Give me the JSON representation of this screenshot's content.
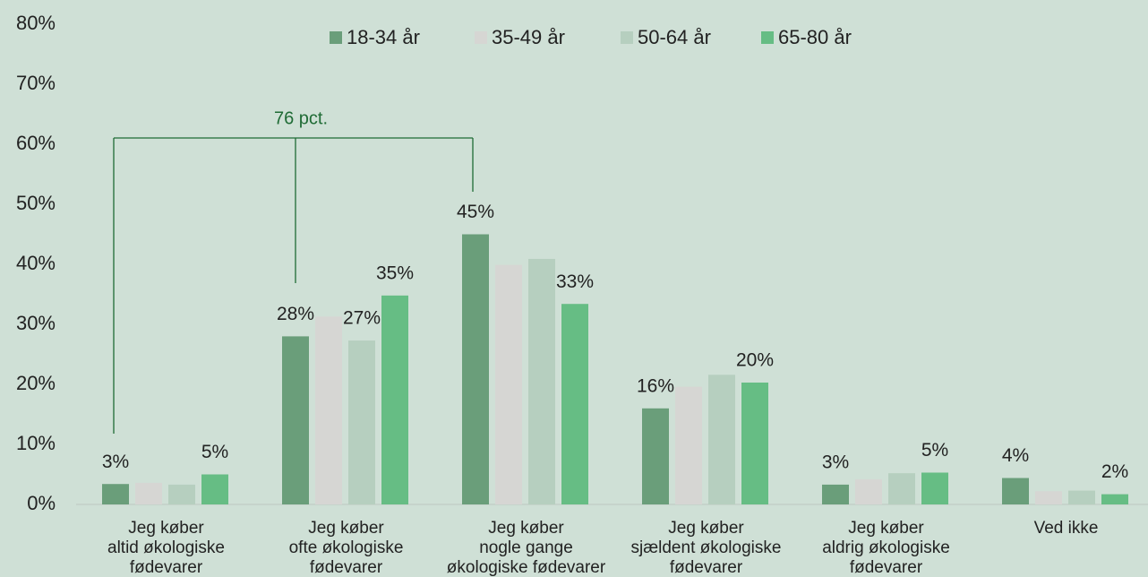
{
  "chart_data": {
    "type": "bar",
    "categories": [
      "Jeg køber\naltid økologiske\nfødevarer",
      "Jeg køber\nofte økologiske\nfødevarer",
      "Jeg køber\nnogle gange\nøkologiske fødevarer",
      "Jeg køber\nsjældent økologiske\nfødevarer",
      "Jeg køber\naldrig økologiske\nfødevarer",
      "Ved ikke"
    ],
    "series": [
      {
        "name": "18-34 år",
        "color": "#6a9e7a",
        "values": [
          3.4,
          28,
          45,
          16,
          3.3,
          4.4
        ],
        "value_labels": [
          "3%",
          "28%",
          "45%",
          "16%",
          "3%",
          "4%"
        ]
      },
      {
        "name": "35-49 år",
        "color": "#d6d6d3",
        "values": [
          3.6,
          31.3,
          39.9,
          19.6,
          4.2,
          2.2
        ],
        "value_labels": [
          null,
          null,
          null,
          null,
          null,
          null
        ]
      },
      {
        "name": "50-64 år",
        "color": "#b6cfbf",
        "values": [
          3.3,
          27.3,
          40.9,
          21.6,
          5.2,
          2.3
        ],
        "value_labels": [
          null,
          "27%",
          null,
          null,
          null,
          null
        ]
      },
      {
        "name": "65-80 år",
        "color": "#66bd84",
        "values": [
          5,
          34.8,
          33.4,
          20.3,
          5.3,
          1.7
        ],
        "value_labels": [
          "5%",
          "35%",
          "33%",
          "20%",
          "5%",
          "2%"
        ]
      }
    ],
    "annotation": "76 pct.",
    "ylim": [
      0,
      80
    ],
    "yticks": [
      {
        "value": 0,
        "label": "0%"
      },
      {
        "value": 10,
        "label": "10%"
      },
      {
        "value": 20,
        "label": "20%"
      },
      {
        "value": 30,
        "label": "30%"
      },
      {
        "value": 40,
        "label": "40%"
      },
      {
        "value": 50,
        "label": "50%"
      },
      {
        "value": 60,
        "label": "60%"
      },
      {
        "value": 70,
        "label": "70%"
      },
      {
        "value": 80,
        "label": "80%"
      }
    ],
    "legend": "top"
  }
}
